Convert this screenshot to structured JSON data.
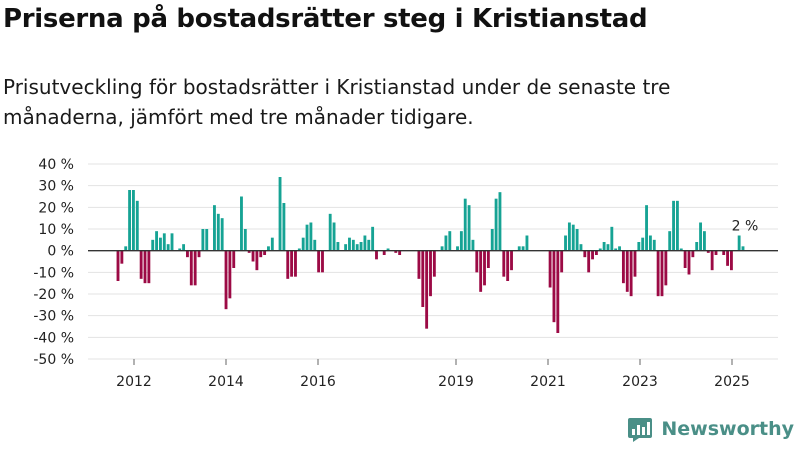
{
  "header": {
    "title": "Priserna på bostadsrätter steg i Kristianstad",
    "subtitle": "Prisutveckling för bostadsrätter i Kristianstad under de senaste tre månaderna, jämfört med tre månader tidigare."
  },
  "brand": {
    "name": "Newsworthy",
    "icon": "bar-chart-logo-icon",
    "color": "#4a8f87"
  },
  "colors": {
    "positive": "#16a394",
    "negative": "#9c0a45",
    "zero_line": "#333333",
    "grid": "#e3e3e3"
  },
  "chart_data": {
    "type": "bar",
    "title": "",
    "xlabel": "",
    "ylabel": "",
    "unit": "%",
    "ylim": [
      -50,
      40
    ],
    "yticks": [
      40,
      30,
      20,
      10,
      0,
      -10,
      -20,
      -30,
      -40,
      -50
    ],
    "ytick_labels": [
      "40 %",
      "30 %",
      "20 %",
      "10 %",
      "0 %",
      "-10 %",
      "-20 %",
      "-30 %",
      "-40 %",
      "-50 %"
    ],
    "xticks": [
      2012,
      2014,
      2016,
      2019,
      2021,
      2023,
      2025
    ],
    "xtick_labels": [
      "2012",
      "2014",
      "2016",
      "2019",
      "2021",
      "2023",
      "2025"
    ],
    "x_range": [
      2011.0,
      2026.0
    ],
    "grid": true,
    "legend": "none",
    "annotation": {
      "label": "2 %",
      "value": 2
    },
    "series": [
      {
        "values": [
          -14,
          -6,
          2,
          28,
          28,
          23,
          -13,
          -15,
          -15,
          5,
          9,
          6,
          8,
          3,
          8,
          0,
          1,
          3,
          -3,
          -16,
          -16,
          -3,
          10,
          10,
          0,
          21,
          17,
          15,
          -27,
          -22,
          -8,
          0,
          25,
          10,
          -1,
          -5,
          -9,
          -3,
          -2,
          2,
          6,
          0,
          34,
          22,
          -13,
          -12,
          -12,
          1,
          6,
          12,
          13,
          5,
          -10,
          -10,
          0,
          17,
          13,
          4,
          0,
          3,
          6,
          5,
          3,
          4,
          7,
          5,
          11,
          -4,
          0,
          -2,
          1,
          0,
          -1,
          -2,
          0,
          0,
          0,
          0,
          -13,
          -26,
          -36,
          -21,
          -12,
          0,
          2,
          7,
          9,
          0,
          2,
          9,
          24,
          21,
          5,
          -10,
          -19,
          -16,
          -8,
          10,
          24,
          27,
          -12,
          -14,
          -9,
          0,
          2,
          2,
          7,
          0,
          0,
          0,
          0,
          0,
          -17,
          -33,
          -38,
          -10,
          7,
          13,
          12,
          10,
          3,
          -3,
          -10,
          -4,
          -2,
          1,
          4,
          3,
          11,
          1,
          2,
          -15,
          -19,
          -21,
          -12,
          4,
          6,
          21,
          7,
          5,
          -21,
          -21,
          -16,
          9,
          23,
          23,
          1,
          -8,
          -11,
          -3,
          4,
          13,
          9,
          -1,
          -9,
          -2,
          0,
          -2,
          -7,
          -9,
          0,
          7,
          2
        ]
      }
    ]
  }
}
